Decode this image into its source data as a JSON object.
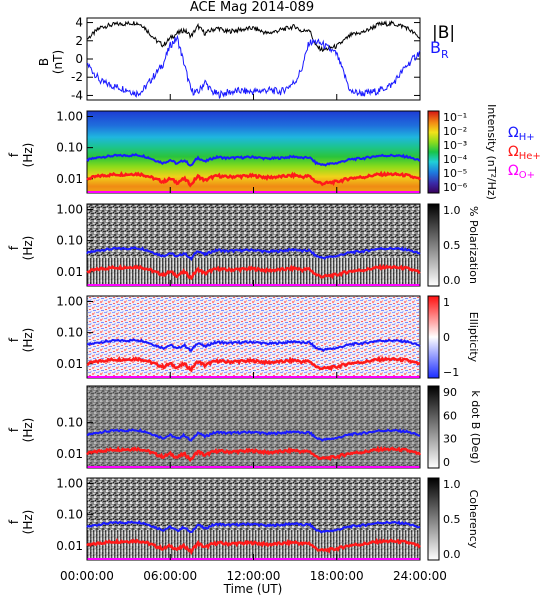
{
  "title": "ACE Mag 2014-089",
  "colors": {
    "omega_h": "#1a1aff",
    "omega_he": "#ff1a1a",
    "omega_o": "#ff00ff",
    "b_total": "#000000",
    "b_r": "#1a1aff"
  },
  "chart_data": [
    {
      "type": "line",
      "panel": "magnetic-field",
      "title": "ACE Mag 2014-089",
      "ylabel": "B (nT)",
      "ylim": [
        -4.5,
        4.5
      ],
      "yticks": [
        "4",
        "2",
        "0",
        "-2",
        "-4"
      ],
      "series": [
        {
          "name": "|B|",
          "x_hours": [
            0,
            1,
            2,
            3,
            3.5,
            4,
            5,
            5.5,
            6,
            6.5,
            7,
            7.5,
            8,
            8.5,
            9,
            9.5,
            10,
            11,
            12,
            13,
            14,
            15,
            15.5,
            16,
            16.5,
            17,
            18,
            19,
            20,
            21,
            22,
            23,
            24
          ],
          "values": [
            2.2,
            3.5,
            3.8,
            3.9,
            4.0,
            3.7,
            2.0,
            1.5,
            2.3,
            2.8,
            3.2,
            2.5,
            3.6,
            2.8,
            3.2,
            3.4,
            3.0,
            3.2,
            3.4,
            2.8,
            3.2,
            3.6,
            3.0,
            3.3,
            1.4,
            1.0,
            1.4,
            2.6,
            3.0,
            3.8,
            3.9,
            3.5,
            2.3
          ]
        },
        {
          "name": "B_R",
          "x_hours": [
            0,
            1,
            2,
            3,
            3.5,
            4,
            5,
            5.5,
            6,
            6.5,
            7,
            7.5,
            8,
            8.5,
            9,
            9.5,
            10,
            11,
            12,
            13,
            14,
            15,
            15.5,
            16,
            16.5,
            17,
            18,
            19,
            20,
            21,
            22,
            23,
            24
          ],
          "values": [
            -0.5,
            -2.5,
            -3.0,
            -3.4,
            -3.8,
            -3.5,
            -1.5,
            -0.5,
            1.5,
            2.3,
            -0.5,
            -3.5,
            -3.7,
            -2.5,
            -3.6,
            -3.9,
            -3.7,
            -3.5,
            -3.6,
            -3.4,
            -3.6,
            -2.5,
            -1.0,
            1.8,
            1.9,
            1.6,
            0.5,
            -3.6,
            -3.8,
            -3.5,
            -2.8,
            -0.8,
            0.8
          ]
        }
      ],
      "legend": [
        "|B|",
        "B_R"
      ]
    },
    {
      "type": "heatmap",
      "panel": "intensity",
      "ylabel": "f (Hz)",
      "yticks": [
        "1.00",
        "0.10",
        "0.01"
      ],
      "colorbar_label": "Intensity (nT²/Hz)",
      "colorbar_ticks": [
        "10⁻¹",
        "10⁻²",
        "10⁻³",
        "10⁻⁴",
        "10⁻⁵",
        "10⁻⁶"
      ],
      "legend": [
        "ΩH+",
        "ΩHe+",
        "ΩO+"
      ]
    },
    {
      "type": "heatmap",
      "panel": "polarization",
      "ylabel": "f (Hz)",
      "yticks": [
        "1.00",
        "0.10",
        "0.01"
      ],
      "colorbar_label": "% Polarization",
      "colorbar_ticks": [
        "1.0",
        "0.5",
        "0.0"
      ]
    },
    {
      "type": "heatmap",
      "panel": "ellipticity",
      "ylabel": "f (Hz)",
      "yticks": [
        "1.00",
        "0.10",
        "0.01"
      ],
      "colorbar_label": "Ellipticity",
      "colorbar_ticks": [
        "1",
        "0",
        "−1"
      ]
    },
    {
      "type": "heatmap",
      "panel": "k-dot-b",
      "ylabel": "f (Hz)",
      "yticks": [
        "0.10",
        "0.01"
      ],
      "colorbar_label": "k dot B (Deg)",
      "colorbar_ticks": [
        "90",
        "60",
        "30",
        "0"
      ]
    },
    {
      "type": "heatmap",
      "panel": "coherency",
      "ylabel": "f (Hz)",
      "yticks": [
        "1.00",
        "0.10",
        "0.01"
      ],
      "colorbar_label": "Coherency",
      "colorbar_ticks": [
        "1.0",
        "0.5",
        "0.0"
      ]
    }
  ],
  "gyrofrequencies": {
    "x_hours": [
      0,
      1,
      2,
      3,
      3.5,
      4,
      5,
      5.5,
      6,
      6.5,
      7,
      7.5,
      8,
      8.5,
      9,
      9.5,
      10,
      11,
      12,
      13,
      14,
      15,
      15.5,
      16,
      16.5,
      17,
      18,
      19,
      20,
      21,
      22,
      23,
      24
    ],
    "omega_h_hz": [
      0.04,
      0.05,
      0.055,
      0.056,
      0.058,
      0.055,
      0.038,
      0.032,
      0.04,
      0.03,
      0.04,
      0.025,
      0.048,
      0.035,
      0.045,
      0.05,
      0.046,
      0.048,
      0.05,
      0.044,
      0.047,
      0.052,
      0.046,
      0.049,
      0.032,
      0.028,
      0.032,
      0.042,
      0.046,
      0.055,
      0.056,
      0.052,
      0.038
    ]
  },
  "x_axis": {
    "label": "Time (UT)",
    "ticks": [
      "00:00:00",
      "06:00:00",
      "12:00:00",
      "18:00:00",
      "24:00:00"
    ]
  },
  "legend_top": {
    "b_total": "|B|",
    "b_r_main": "B",
    "b_r_sub": "R"
  },
  "legend_omega": {
    "h_main": "Ω",
    "h_sub": "H+",
    "he_main": "Ω",
    "he_sub": "He+",
    "o_main": "Ω",
    "o_sub": "O+"
  },
  "panel_labels": {
    "b_panel_ylabel_1": "B",
    "b_panel_ylabel_2": "(nT)",
    "f_ylabel_1": "f",
    "f_ylabel_2": "(Hz)"
  }
}
